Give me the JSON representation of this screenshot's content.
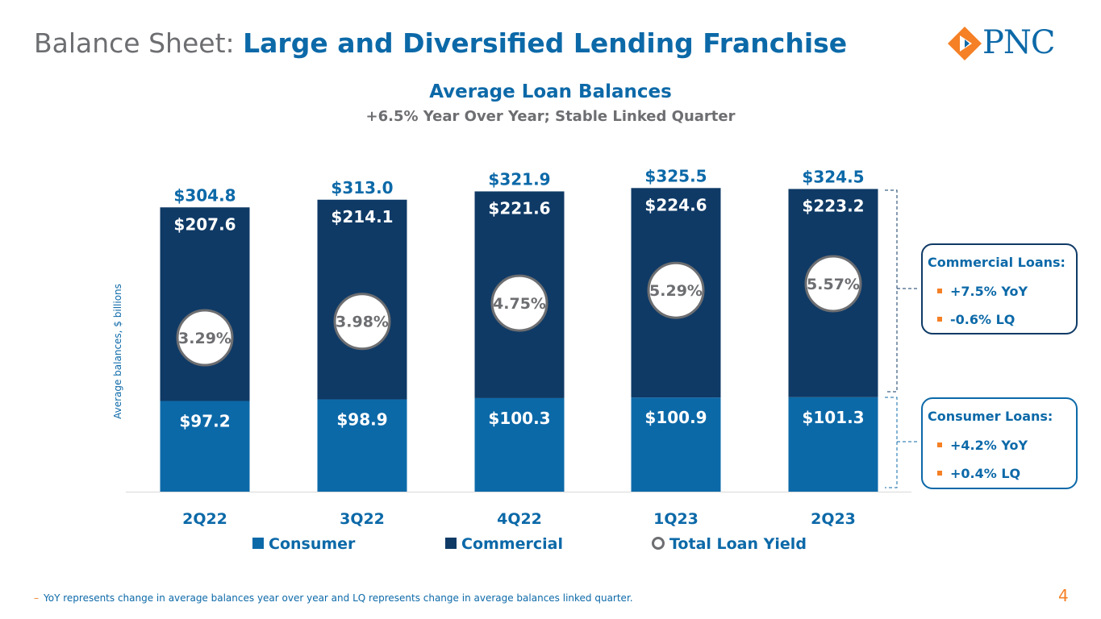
{
  "header": {
    "title_prefix": "Balance Sheet:",
    "title_main": "Large and Diversified Lending Franchise",
    "logo_text": "PNC"
  },
  "chart_data": {
    "type": "bar",
    "stacked": true,
    "title": "Average Loan Balances",
    "subtitle": "+6.5% Year Over Year; Stable Linked Quarter",
    "ylabel": "Average balances, $ billions",
    "categories": [
      "2Q22",
      "3Q22",
      "4Q22",
      "1Q23",
      "2Q23"
    ],
    "series": [
      {
        "name": "Consumer",
        "values": [
          97.2,
          98.9,
          100.3,
          100.9,
          101.3
        ],
        "labels": [
          "$97.2",
          "$98.9",
          "$100.3",
          "$100.9",
          "$101.3"
        ],
        "color": "#0c69a8"
      },
      {
        "name": "Commercial",
        "values": [
          207.6,
          214.1,
          221.6,
          224.6,
          223.2
        ],
        "labels": [
          "$207.6",
          "$214.1",
          "$221.6",
          "$224.6",
          "$223.2"
        ],
        "color": "#0f3a66"
      }
    ],
    "totals": [
      304.8,
      313.0,
      321.9,
      325.5,
      324.5
    ],
    "total_labels": [
      "$304.8",
      "$313.0",
      "$321.9",
      "$325.5",
      "$324.5"
    ],
    "yield_series": {
      "name": "Total Loan Yield",
      "values": [
        3.29,
        3.98,
        4.75,
        5.29,
        5.57
      ],
      "labels": [
        "3.29%",
        "3.98%",
        "4.75%",
        "5.29%",
        "5.57%"
      ],
      "color": "#6d6e71"
    },
    "ylim": [
      0,
      340
    ],
    "grid": false,
    "legend_position": "bottom"
  },
  "callouts": {
    "commercial": {
      "title": "Commercial Loans:",
      "items": [
        "+7.5% YoY",
        "-0.6% LQ"
      ]
    },
    "consumer": {
      "title": "Consumer Loans:",
      "items": [
        "+4.2% YoY",
        "+0.4% LQ"
      ]
    }
  },
  "legend": {
    "consumer": "Consumer",
    "commercial": "Commercial",
    "yield": "Total Loan Yield"
  },
  "footer": {
    "footnote": "YoY represents change in average balances year over year and LQ represents change in average balances linked quarter.",
    "footnote_marker": "–",
    "page_number": "4"
  },
  "colors": {
    "accent_orange": "#f58025",
    "brand_blue": "#0c69a8",
    "navy": "#0f3a66",
    "gray": "#6d6e71"
  }
}
